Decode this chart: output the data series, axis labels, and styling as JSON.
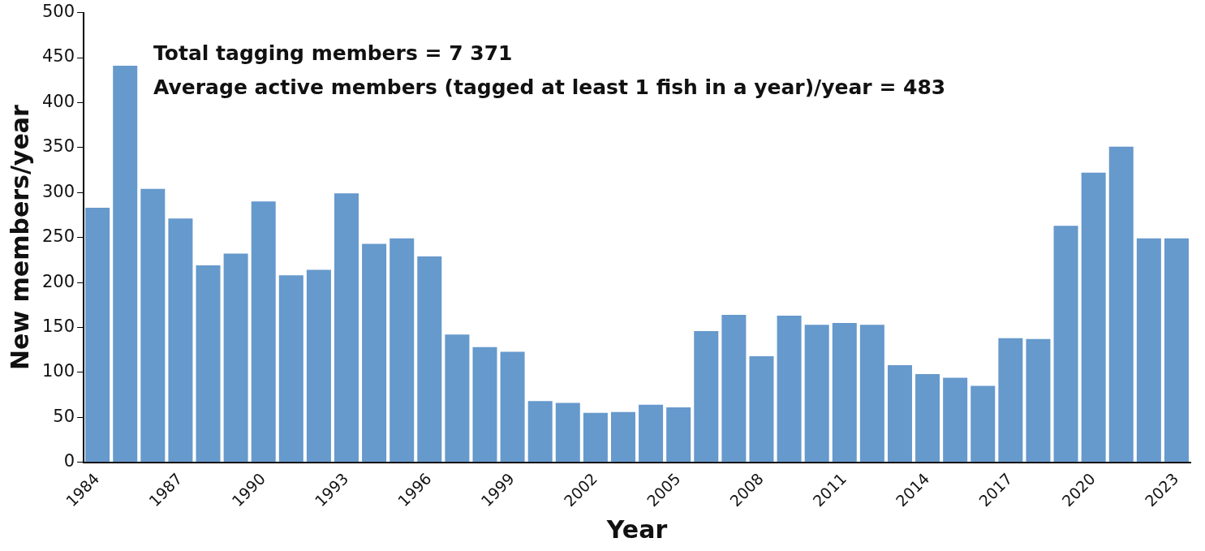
{
  "chart_data": {
    "type": "bar",
    "xlabel": "Year",
    "ylabel": "New members/year",
    "categories": [
      "1984",
      null,
      null,
      "1987",
      null,
      null,
      "1990",
      null,
      null,
      "1993",
      null,
      null,
      "1996",
      null,
      null,
      "1999",
      null,
      null,
      "2002",
      null,
      null,
      "2005",
      null,
      null,
      "2008",
      null,
      null,
      "2011",
      null,
      null,
      "2014",
      null,
      null,
      "2017",
      null,
      null,
      "2020",
      null,
      null,
      "2023"
    ],
    "values": [
      283,
      441,
      304,
      271,
      219,
      232,
      290,
      208,
      214,
      299,
      243,
      249,
      229,
      142,
      128,
      123,
      68,
      66,
      55,
      56,
      64,
      61,
      146,
      164,
      118,
      163,
      153,
      155,
      153,
      108,
      98,
      94,
      85,
      138,
      137,
      263,
      322,
      351,
      249,
      249
    ],
    "color": "#6699cc",
    "ylim": [
      0,
      500
    ],
    "yticks": [
      0,
      50,
      100,
      150,
      200,
      250,
      300,
      350,
      400,
      450,
      500
    ],
    "grid": false,
    "annotations": [
      "Total tagging members = 7 371",
      "Average active members (tagged at least 1 fish in a year)/year = 483"
    ]
  }
}
